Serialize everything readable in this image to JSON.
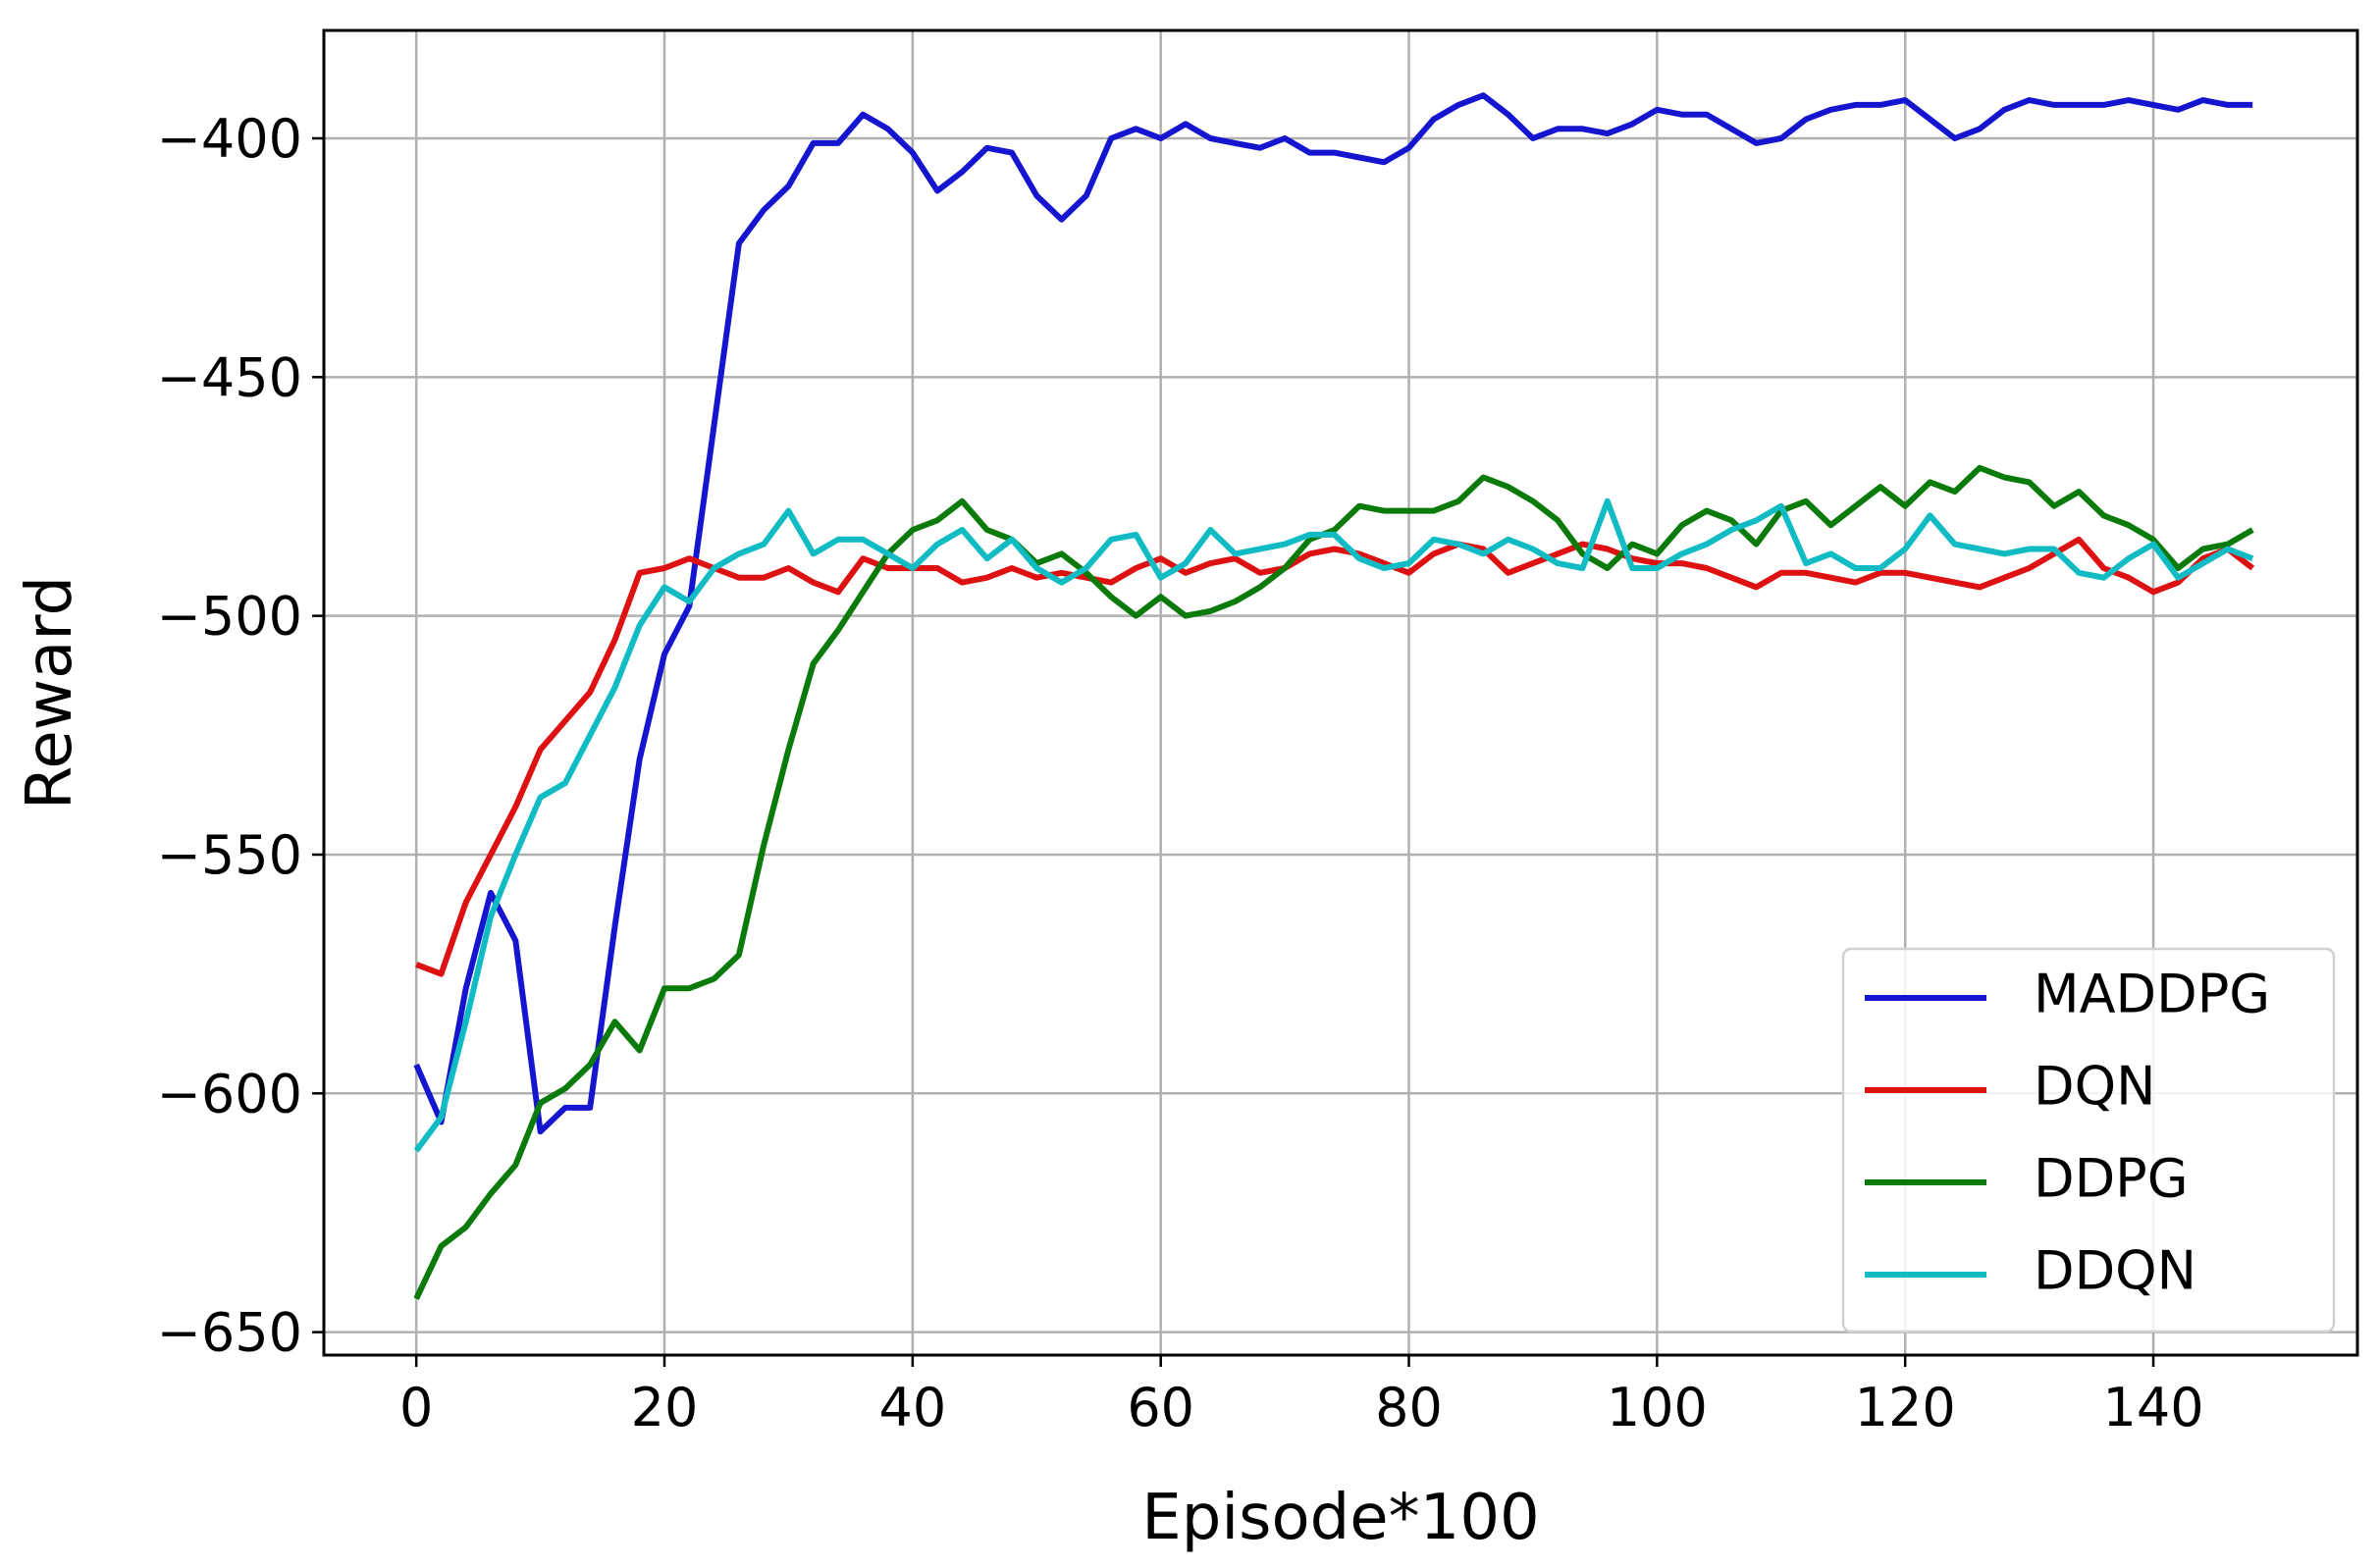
{
  "chart_data": {
    "type": "line",
    "x_label": "Episode*100",
    "y_label": "Reward",
    "x": [
      0,
      2,
      4,
      6,
      8,
      10,
      12,
      14,
      16,
      18,
      20,
      22,
      24,
      26,
      28,
      30,
      32,
      34,
      36,
      38,
      40,
      42,
      44,
      46,
      48,
      50,
      52,
      54,
      56,
      58,
      60,
      62,
      64,
      66,
      68,
      70,
      72,
      74,
      76,
      78,
      80,
      82,
      84,
      86,
      88,
      90,
      92,
      94,
      96,
      98,
      100,
      102,
      104,
      106,
      108,
      110,
      112,
      114,
      116,
      118,
      120,
      122,
      124,
      126,
      128,
      130,
      132,
      134,
      136,
      138,
      140,
      142,
      144,
      146,
      148
    ],
    "series": [
      {
        "name": "MADDPG",
        "color": "#1515d0",
        "values": [
          -594,
          -606,
          -578,
          -558,
          -568,
          -608,
          -603,
          -603,
          -565,
          -530,
          -508,
          -498,
          -460,
          -422,
          -415,
          -410,
          -401,
          -401,
          -395,
          -398,
          -403,
          -411,
          -407,
          -402,
          -403,
          -412,
          -417,
          -412,
          -400,
          -398,
          -400,
          -397,
          -400,
          -401,
          -402,
          -400,
          -403,
          -403,
          -404,
          -405,
          -402,
          -396,
          -393,
          -391,
          -395,
          -400,
          -398,
          -398,
          -399,
          -397,
          -394,
          -395,
          -395,
          -398,
          -401,
          -400,
          -396,
          -394,
          -393,
          -393,
          -392,
          -396,
          -400,
          -398,
          -394,
          -392,
          -393,
          -393,
          -393,
          -392,
          -393,
          -394,
          -392,
          -393,
          -393
        ]
      },
      {
        "name": "DQN",
        "color": "#dd1111",
        "values": [
          -573,
          -575,
          -560,
          -550,
          -540,
          -528,
          -522,
          -516,
          -505,
          -491,
          -490,
          -488,
          -490,
          -492,
          -492,
          -490,
          -493,
          -495,
          -488,
          -490,
          -490,
          -490,
          -493,
          -492,
          -490,
          -492,
          -491,
          -492,
          -493,
          -490,
          -488,
          -491,
          -489,
          -488,
          -491,
          -490,
          -487,
          -486,
          -487,
          -489,
          -491,
          -487,
          -485,
          -486,
          -491,
          -489,
          -487,
          -485,
          -486,
          -488,
          -489,
          -489,
          -490,
          -492,
          -494,
          -491,
          -491,
          -492,
          -493,
          -491,
          -491,
          -492,
          -493,
          -494,
          -492,
          -490,
          -487,
          -484,
          -490,
          -492,
          -495,
          -493,
          -488,
          -486,
          -490
        ]
      },
      {
        "name": "DDPG",
        "color": "#0a7a0a",
        "values": [
          -643,
          -632,
          -628,
          -621,
          -615,
          -602,
          -599,
          -594,
          -585,
          -591,
          -578,
          -578,
          -576,
          -571,
          -548,
          -528,
          -510,
          -503,
          -495,
          -487,
          -482,
          -480,
          -476,
          -482,
          -484,
          -489,
          -487,
          -491,
          -496,
          -500,
          -496,
          -500,
          -499,
          -497,
          -494,
          -490,
          -484,
          -482,
          -477,
          -478,
          -478,
          -478,
          -476,
          -471,
          -473,
          -476,
          -480,
          -487,
          -490,
          -485,
          -487,
          -481,
          -478,
          -480,
          -485,
          -478,
          -476,
          -481,
          -477,
          -473,
          -477,
          -472,
          -474,
          -469,
          -471,
          -472,
          -477,
          -474,
          -479,
          -481,
          -484,
          -490,
          -486,
          -485,
          -482
        ]
      },
      {
        "name": "DDQN",
        "color": "#11bbc4",
        "values": [
          -612,
          -605,
          -585,
          -563,
          -550,
          -538,
          -535,
          -525,
          -515,
          -502,
          -494,
          -497,
          -490,
          -487,
          -485,
          -478,
          -487,
          -484,
          -484,
          -487,
          -490,
          -485,
          -482,
          -488,
          -484,
          -490,
          -493,
          -490,
          -484,
          -483,
          -492,
          -489,
          -482,
          -487,
          -486,
          -485,
          -483,
          -483,
          -488,
          -490,
          -489,
          -484,
          -485,
          -487,
          -484,
          -486,
          -489,
          -490,
          -476,
          -490,
          -490,
          -487,
          -485,
          -482,
          -480,
          -477,
          -489,
          -487,
          -490,
          -490,
          -486,
          -479,
          -485,
          -486,
          -487,
          -486,
          -486,
          -491,
          -492,
          -488,
          -485,
          -492,
          -489,
          -486,
          -488
        ]
      }
    ],
    "xlim": [
      -7.45,
      156.45
    ],
    "ylim": [
      -654.8,
      -377.4
    ],
    "xticks": [
      0,
      20,
      40,
      60,
      80,
      100,
      120,
      140
    ],
    "yticks": [
      {
        "value": -400,
        "label": "−400"
      },
      {
        "value": -450,
        "label": "−450"
      },
      {
        "value": -500,
        "label": "−500"
      },
      {
        "value": -550,
        "label": "−550"
      },
      {
        "value": -600,
        "label": "−600"
      },
      {
        "value": -650,
        "label": "−650"
      }
    ],
    "grid": true,
    "legend": "lower right"
  }
}
